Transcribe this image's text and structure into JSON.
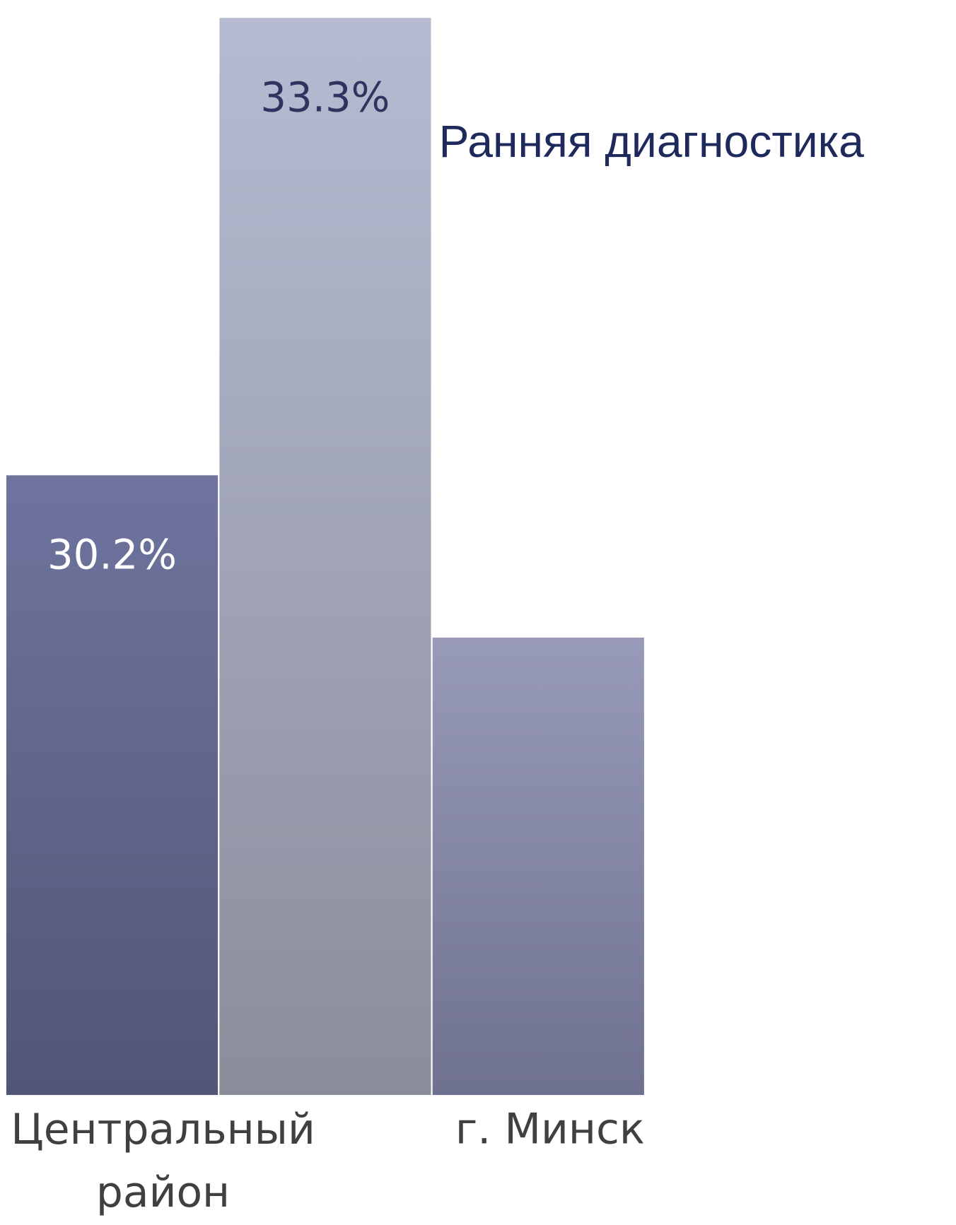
{
  "chart_data": {
    "type": "bar",
    "title": "Ранняя диагностика",
    "categories": [
      "Центральный район",
      null,
      "г. Минск"
    ],
    "values": [
      30.2,
      33.3,
      29.1
    ],
    "value_labels": [
      "30.2%",
      "33.3%",
      null
    ],
    "colors": [
      [
        "#6e749e",
        "#525676"
      ],
      [
        "#b6bbd2",
        "#8b8d9b"
      ],
      [
        "#989bb8",
        "#6e718f"
      ]
    ],
    "label_colors": [
      "#ffffff",
      "#2e3460",
      null
    ],
    "ylim": [
      26.0,
      33.4
    ]
  }
}
